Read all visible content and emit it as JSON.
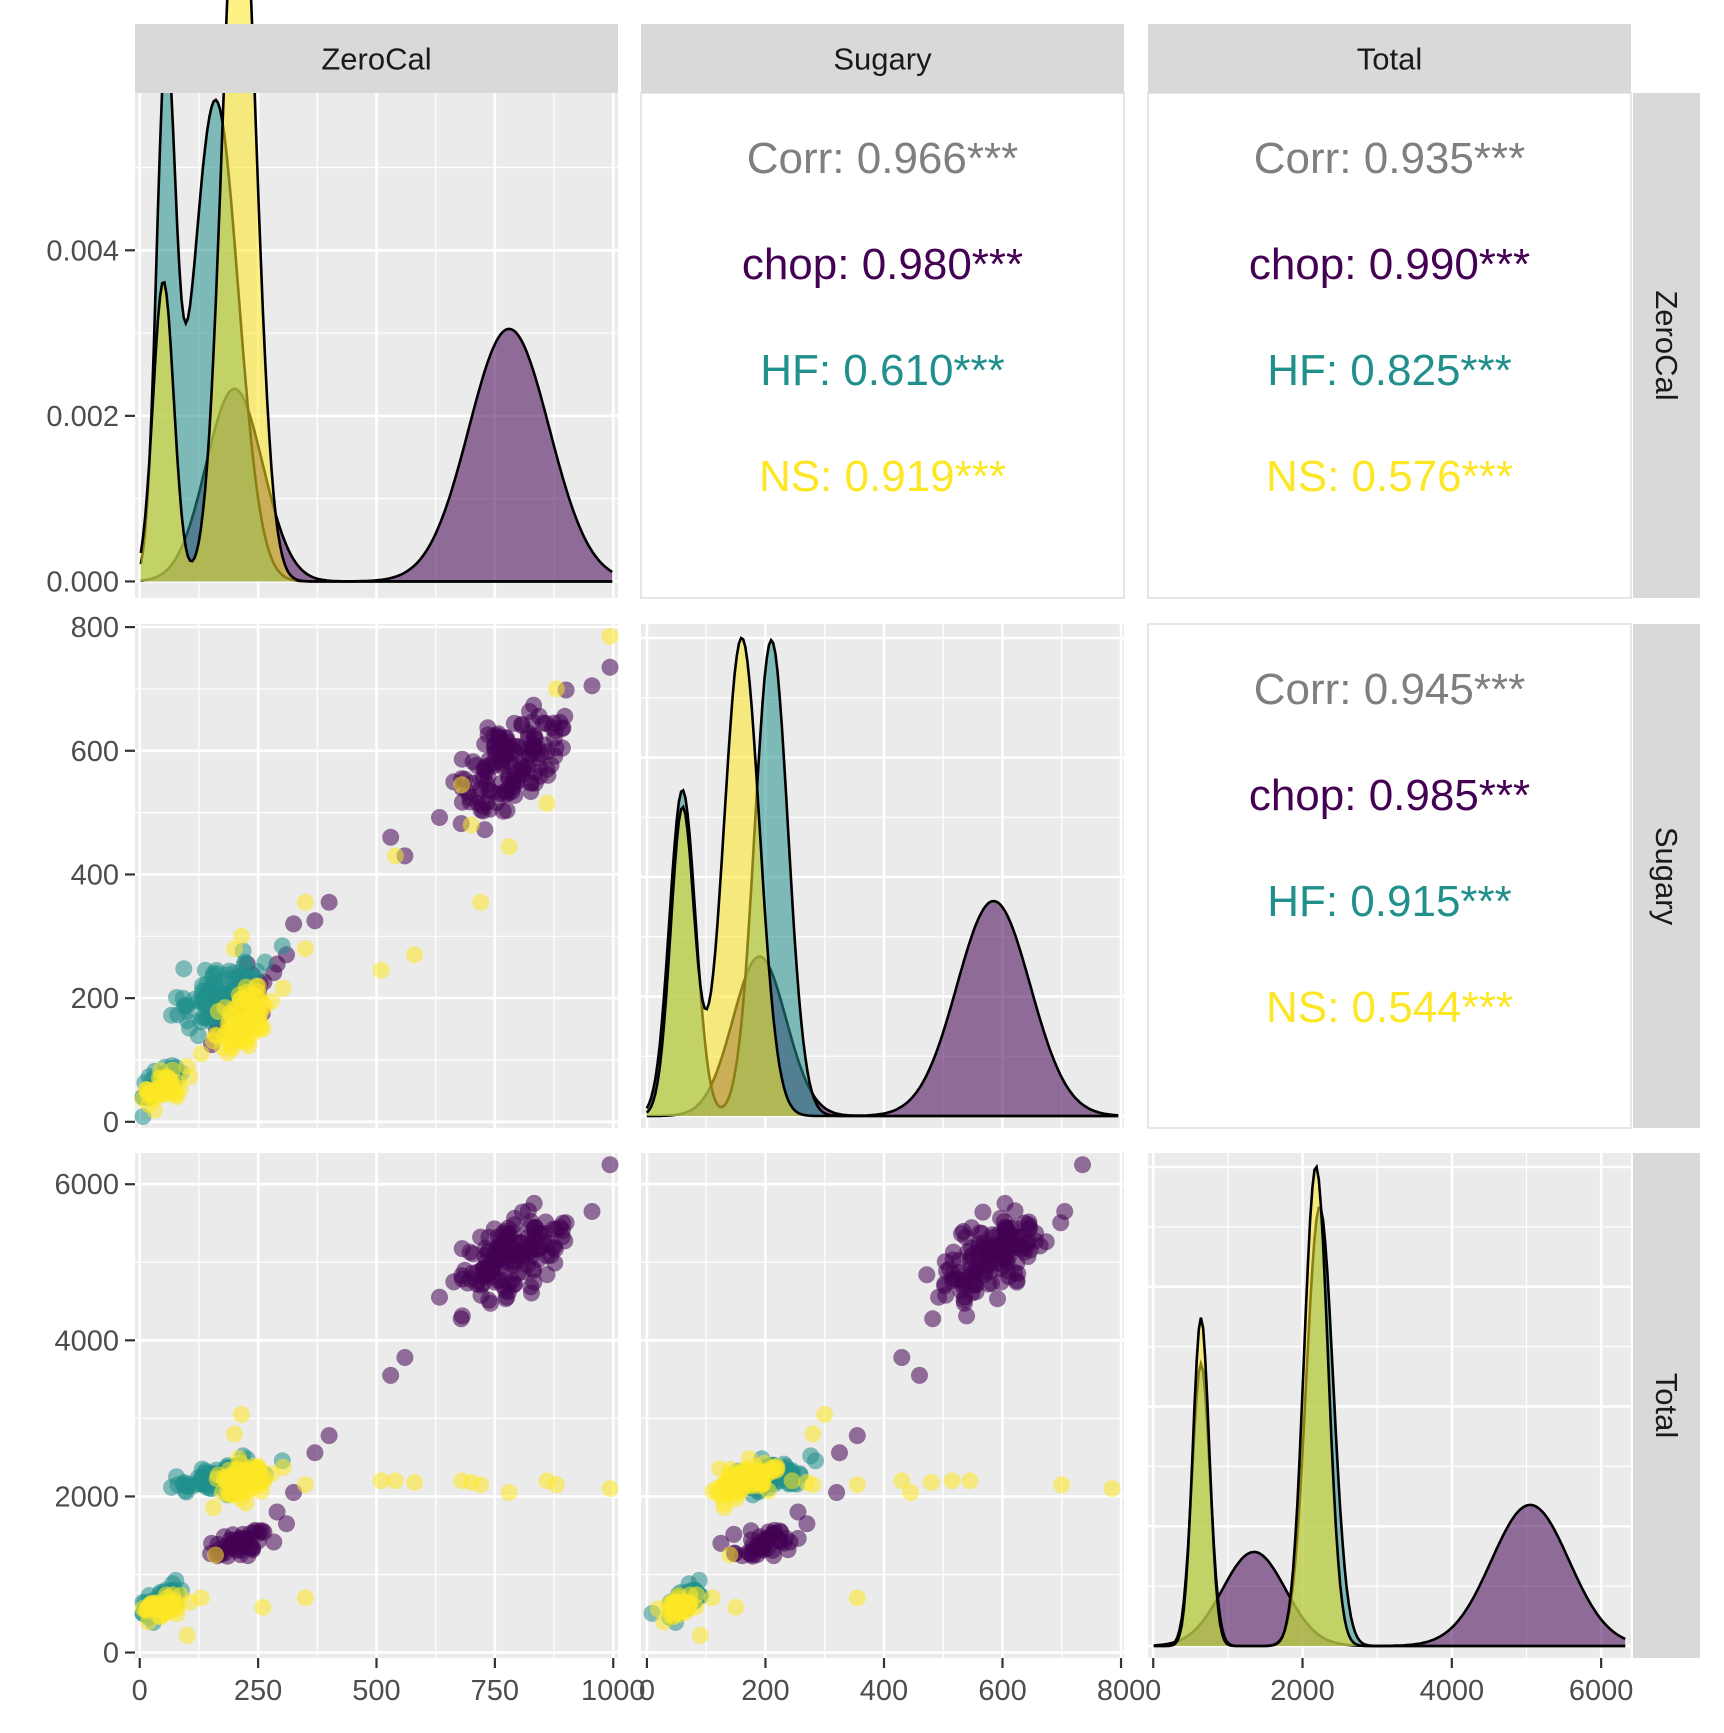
{
  "colors": {
    "chop": "#440154",
    "HF": "#21908C",
    "NS": "#FDE725",
    "overall": "#7F7F7F",
    "panel_bg": "#EBEBEB",
    "strip_bg": "#D9D9D9",
    "grid": "#FFFFFF",
    "ticks": "#4D4D4D"
  },
  "chart_data": {
    "type": "pairs-matrix",
    "variables": [
      "ZeroCal",
      "Sugary",
      "Total"
    ],
    "groups": [
      "chop",
      "HF",
      "NS"
    ],
    "alpha": 0.55,
    "axes": {
      "ZeroCal": {
        "range": [
          -10,
          1010
        ],
        "ticks": [
          "0",
          "250",
          "500",
          "750",
          "1000"
        ]
      },
      "Sugary": {
        "range": [
          -10,
          805
        ],
        "ticks": [
          "0",
          "200",
          "400",
          "600",
          "800"
        ]
      },
      "Total": {
        "range": [
          -70,
          6400
        ],
        "ticks": [
          "0",
          "2000",
          "4000",
          "6000"
        ]
      },
      "density_ZeroCal_y": {
        "range": [
          -0.0002,
          0.0059
        ],
        "ticks": [
          "0.000",
          "0.002",
          "0.004"
        ]
      }
    },
    "correlations": [
      {
        "row": "ZeroCal",
        "col": "Sugary",
        "lines": [
          "Corr: 0.966***",
          "chop: 0.980***",
          "HF: 0.610***",
          "NS: 0.919***"
        ]
      },
      {
        "row": "ZeroCal",
        "col": "Total",
        "lines": [
          "Corr: 0.935***",
          "chop: 0.990***",
          "HF: 0.825***",
          "NS: 0.576***"
        ]
      },
      {
        "row": "Sugary",
        "col": "Total",
        "lines": [
          "Corr: 0.945***",
          "chop: 0.985***",
          "HF: 0.915***",
          "NS: 0.544***"
        ]
      }
    ],
    "densities": {
      "ZeroCal": {
        "chop": [
          [
            200,
            0.35,
            60
          ],
          [
            780,
            0.65,
            85
          ]
        ],
        "HF": [
          [
            55,
            0.3,
            20
          ],
          [
            160,
            0.7,
            48
          ]
        ],
        "NS": [
          [
            50,
            0.2,
            22
          ],
          [
            210,
            0.8,
            35
          ]
        ]
      },
      "Sugary": {
        "chop": [
          [
            190,
            0.35,
            45
          ],
          [
            585,
            0.65,
            62
          ]
        ],
        "HF": [
          [
            60,
            0.35,
            22
          ],
          [
            210,
            0.65,
            28
          ]
        ],
        "NS": [
          [
            60,
            0.3,
            20
          ],
          [
            160,
            0.7,
            30
          ]
        ]
      },
      "Total": {
        "chop": [
          [
            1350,
            0.35,
            420
          ],
          [
            5050,
            0.65,
            520
          ]
        ],
        "HF": [
          [
            640,
            0.3,
            120
          ],
          [
            2230,
            0.7,
            180
          ]
        ],
        "NS": [
          [
            640,
            0.32,
            110
          ],
          [
            2180,
            0.68,
            160
          ]
        ]
      }
    },
    "cluster_points": {
      "chop": [
        {
          "n": 150,
          "ZeroCal": 790,
          "Sugary": 585,
          "Total": 5080,
          "sd": [
            60,
            45,
            290
          ]
        },
        {
          "n": 50,
          "ZeroCal": 210,
          "Sugary": 190,
          "Total": 1380,
          "sd": [
            30,
            25,
            110
          ]
        }
      ],
      "HF": [
        {
          "n": 100,
          "ZeroCal": 170,
          "Sugary": 210,
          "Total": 2250,
          "sd": [
            45,
            28,
            95
          ]
        },
        {
          "n": 35,
          "ZeroCal": 50,
          "Sugary": 65,
          "Total": 680,
          "sd": [
            22,
            16,
            100
          ]
        }
      ],
      "NS": [
        {
          "n": 90,
          "ZeroCal": 215,
          "Sugary": 160,
          "Total": 2170,
          "sd": [
            30,
            28,
            120
          ]
        },
        {
          "n": 40,
          "ZeroCal": 55,
          "Sugary": 55,
          "Total": 600,
          "sd": [
            22,
            15,
            90
          ]
        }
      ]
    },
    "outlier_points": [
      {
        "group": "chop",
        "ZeroCal": 1000,
        "Sugary": 735,
        "Total": 6250
      },
      {
        "group": "chop",
        "ZeroCal": 955,
        "Sugary": 705,
        "Total": 5650
      },
      {
        "group": "chop",
        "ZeroCal": 530,
        "Sugary": 460,
        "Total": 3550
      },
      {
        "group": "chop",
        "ZeroCal": 560,
        "Sugary": 430,
        "Total": 3780
      },
      {
        "group": "chop",
        "ZeroCal": 400,
        "Sugary": 355,
        "Total": 2780
      },
      {
        "group": "chop",
        "ZeroCal": 370,
        "Sugary": 325,
        "Total": 2560
      },
      {
        "group": "chop",
        "ZeroCal": 325,
        "Sugary": 320,
        "Total": 2050
      },
      {
        "group": "chop",
        "ZeroCal": 290,
        "Sugary": 255,
        "Total": 1800
      },
      {
        "group": "chop",
        "ZeroCal": 310,
        "Sugary": 270,
        "Total": 1650
      },
      {
        "group": "NS",
        "ZeroCal": 1000,
        "Sugary": 785,
        "Total": 2100
      },
      {
        "group": "NS",
        "ZeroCal": 880,
        "Sugary": 700,
        "Total": 2150
      },
      {
        "group": "NS",
        "ZeroCal": 860,
        "Sugary": 515,
        "Total": 2200
      },
      {
        "group": "NS",
        "ZeroCal": 780,
        "Sugary": 445,
        "Total": 2050
      },
      {
        "group": "NS",
        "ZeroCal": 720,
        "Sugary": 355,
        "Total": 2150
      },
      {
        "group": "NS",
        "ZeroCal": 700,
        "Sugary": 480,
        "Total": 2180
      },
      {
        "group": "NS",
        "ZeroCal": 680,
        "Sugary": 545,
        "Total": 2200
      },
      {
        "group": "NS",
        "ZeroCal": 580,
        "Sugary": 270,
        "Total": 2180
      },
      {
        "group": "NS",
        "ZeroCal": 540,
        "Sugary": 430,
        "Total": 2200
      },
      {
        "group": "NS",
        "ZeroCal": 510,
        "Sugary": 245,
        "Total": 2200
      },
      {
        "group": "NS",
        "ZeroCal": 350,
        "Sugary": 355,
        "Total": 700
      },
      {
        "group": "NS",
        "ZeroCal": 350,
        "Sugary": 280,
        "Total": 2150
      },
      {
        "group": "NS",
        "ZeroCal": 260,
        "Sugary": 150,
        "Total": 580
      },
      {
        "group": "NS",
        "ZeroCal": 215,
        "Sugary": 300,
        "Total": 3050
      },
      {
        "group": "NS",
        "ZeroCal": 200,
        "Sugary": 280,
        "Total": 2800
      },
      {
        "group": "NS",
        "ZeroCal": 100,
        "Sugary": 90,
        "Total": 220
      },
      {
        "group": "NS",
        "ZeroCal": 130,
        "Sugary": 110,
        "Total": 700
      },
      {
        "group": "NS",
        "ZeroCal": 160,
        "Sugary": 140,
        "Total": 1250
      }
    ]
  }
}
